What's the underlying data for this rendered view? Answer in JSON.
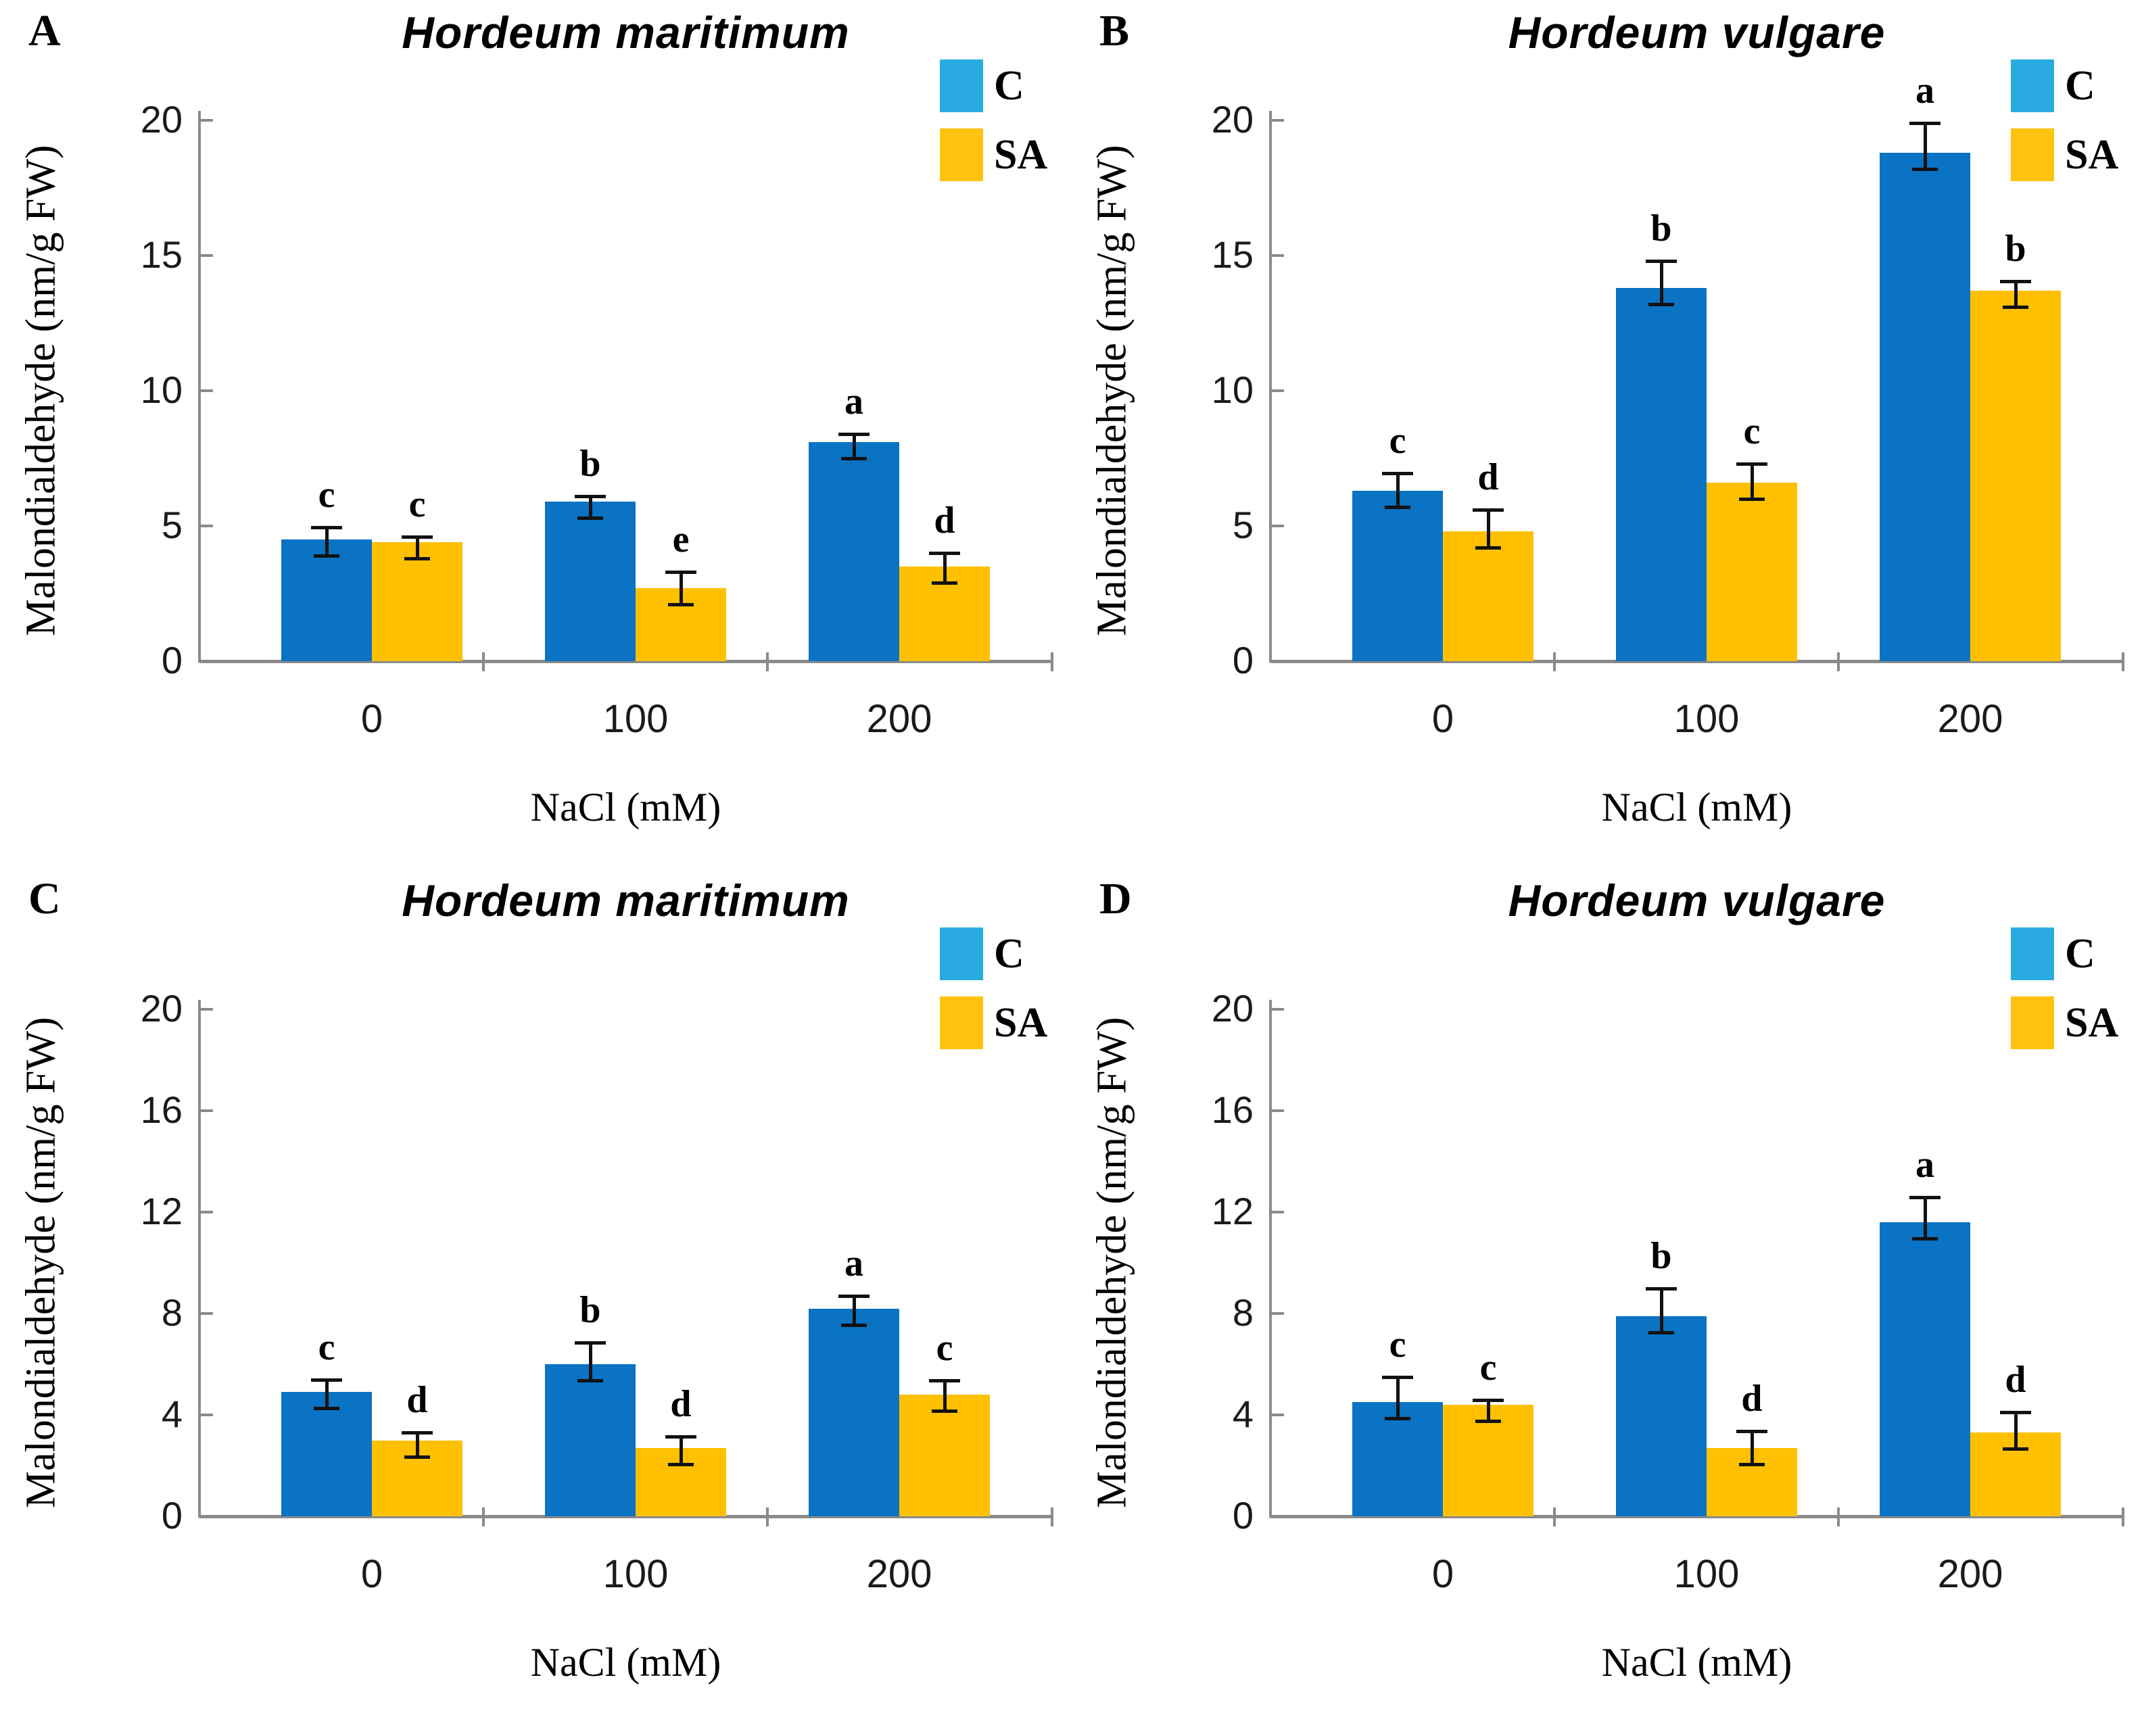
{
  "legend": {
    "items": [
      {
        "label": "C",
        "swatch_color": "#29ABE2"
      },
      {
        "label": "SA",
        "swatch_color": "#FFC20E"
      }
    ],
    "position": "top-right"
  },
  "colors": {
    "bar_c": "#0A73C4",
    "bar_sa": "#FFC000",
    "axis": "#8A8A8A",
    "text": "#000000"
  },
  "chart_data": [
    {
      "id": "A",
      "type": "bar",
      "title": "Hordeum maritimum",
      "ylabel": "Malondialdehyde (nm/g FW)",
      "xlabel": "NaCl (mM)",
      "categories": [
        "0",
        "100",
        "200"
      ],
      "yticks": [
        0,
        5,
        10,
        15,
        20
      ],
      "ylim": [
        0,
        20
      ],
      "grid": false,
      "legend_position": "top-right",
      "series": [
        {
          "name": "C",
          "values": [
            4.5,
            5.9,
            8.1
          ],
          "errors": [
            0.45,
            0.2,
            0.3
          ],
          "sig_letters": [
            "c",
            "b",
            "a"
          ]
        },
        {
          "name": "SA",
          "values": [
            4.4,
            2.7,
            3.5
          ],
          "errors": [
            0.2,
            0.6,
            0.5
          ],
          "sig_letters": [
            "c",
            "e",
            "d"
          ]
        }
      ]
    },
    {
      "id": "B",
      "type": "bar",
      "title": "Hordeum vulgare",
      "ylabel": "Malondialdehyde (nm/g FW)",
      "xlabel": "NaCl (mM)",
      "categories": [
        "0",
        "100",
        "200"
      ],
      "yticks": [
        0,
        5,
        10,
        15,
        20
      ],
      "ylim": [
        0,
        20
      ],
      "grid": false,
      "legend_position": "top-right",
      "series": [
        {
          "name": "C",
          "values": [
            6.3,
            13.8,
            18.8
          ],
          "errors": [
            0.65,
            1.0,
            1.1
          ],
          "sig_letters": [
            "c",
            "b",
            "a"
          ]
        },
        {
          "name": "SA",
          "values": [
            4.8,
            6.6,
            13.7
          ],
          "errors": [
            0.8,
            0.7,
            0.35
          ],
          "sig_letters": [
            "d",
            "c",
            "b"
          ]
        }
      ]
    },
    {
      "id": "C",
      "type": "bar",
      "title": "Hordeum maritimum",
      "ylabel": "Malondialdehyde (nm/g FW)",
      "xlabel": "NaCl (mM)",
      "categories": [
        "0",
        "100",
        "200"
      ],
      "yticks": [
        0,
        4,
        8,
        12,
        16,
        20
      ],
      "ylim": [
        0,
        20
      ],
      "grid": false,
      "legend_position": "top-right",
      "series": [
        {
          "name": "C",
          "values": [
            4.9,
            6.0,
            8.2
          ],
          "errors": [
            0.5,
            0.85,
            0.5
          ],
          "sig_letters": [
            "c",
            "b",
            "a"
          ]
        },
        {
          "name": "SA",
          "values": [
            3.0,
            2.7,
            4.8
          ],
          "errors": [
            0.3,
            0.45,
            0.55
          ],
          "sig_letters": [
            "d",
            "d",
            "c"
          ]
        }
      ]
    },
    {
      "id": "D",
      "type": "bar",
      "title": "Hordeum vulgare",
      "ylabel": "Malondialdehyde (nm/g FW)",
      "xlabel": "NaCl (mM)",
      "categories": [
        "0",
        "100",
        "200"
      ],
      "yticks": [
        0,
        4,
        8,
        12,
        16,
        20
      ],
      "ylim": [
        0,
        20
      ],
      "grid": false,
      "legend_position": "top-right",
      "series": [
        {
          "name": "C",
          "values": [
            4.5,
            7.9,
            11.6
          ],
          "errors": [
            1.0,
            1.1,
            1.0
          ],
          "sig_letters": [
            "c",
            "b",
            "a"
          ]
        },
        {
          "name": "SA",
          "values": [
            4.4,
            2.7,
            3.3
          ],
          "errors": [
            0.2,
            0.65,
            0.8
          ],
          "sig_letters": [
            "c",
            "d",
            "d"
          ]
        }
      ]
    }
  ]
}
